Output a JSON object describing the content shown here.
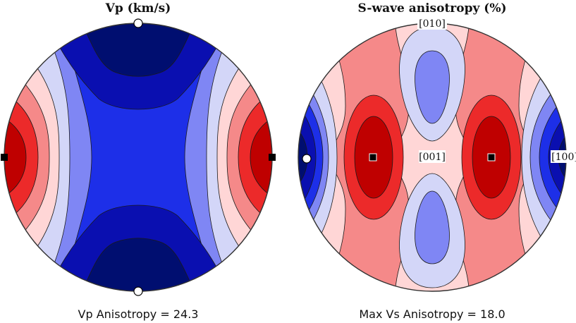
{
  "chart_data": [
    {
      "type": "heatmap",
      "title": "Vp (km/s)",
      "caption": "Vp Anisotropy = 24.3",
      "projection": "pole figure (hemisphere)",
      "palette": [
        "#000e70",
        "#0a0fb0",
        "#1d2fe8",
        "#7f86f4",
        "#d3d6f8",
        "#ffd6d6",
        "#f58989",
        "#ec2a2a",
        "#bf0000"
      ],
      "markers": [
        {
          "name": "max",
          "symbol": "square",
          "positions": [
            "west",
            "east"
          ]
        },
        {
          "name": "min",
          "symbol": "circle",
          "positions": [
            "north",
            "south"
          ]
        }
      ],
      "axis_labels": []
    },
    {
      "type": "heatmap",
      "title": "S-wave anisotropy (%)",
      "caption": "Max Vs Anisotropy = 18.0",
      "projection": "pole figure (hemisphere)",
      "palette": [
        "#000e70",
        "#0a0fb0",
        "#1d2fe8",
        "#7f86f4",
        "#d3d6f8",
        "#ffd6d6",
        "#f58989",
        "#ec2a2a",
        "#bf0000"
      ],
      "markers": [
        {
          "name": "max",
          "symbol": "square",
          "positions": [
            "west-center",
            "east-center"
          ]
        },
        {
          "name": "min",
          "symbol": "circle",
          "positions": [
            "west"
          ]
        }
      ],
      "axis_labels": [
        "[010]",
        "[001]",
        "[100]"
      ]
    }
  ],
  "colors": {
    "outline": "#333333",
    "contour": "#1a1a1a",
    "marker_fill_square": "#000000",
    "marker_fill_circle": "#ffffff"
  }
}
